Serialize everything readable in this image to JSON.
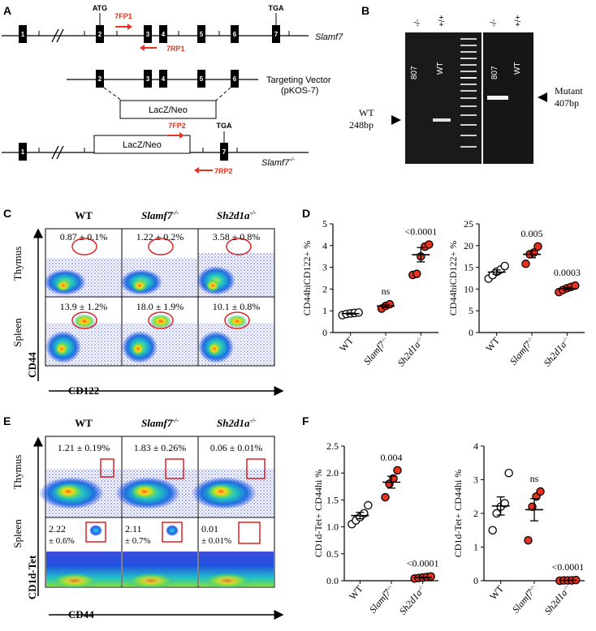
{
  "panels": {
    "A": "A",
    "B": "B",
    "C": "C",
    "D": "D",
    "E": "E",
    "F": "F"
  },
  "panelA": {
    "atg": "ATG",
    "tga_top": "TGA",
    "tga_bottom": "TGA",
    "gene_slamf7": "Slamf7",
    "gene_ko": "Slamf7",
    "gene_ko_sup": "-/-",
    "vector_line1": "Targeting Vector",
    "vector_line2": "(pKOS-7)",
    "cassette1": "LacZ/Neo",
    "cassette2": "LacZ/Neo",
    "primer_7fp1": "7FP1",
    "primer_7rp1": "7RP1",
    "primer_7fp2": "7FP2",
    "primer_7rp2": "7RP2",
    "exons_top": [
      "1",
      "2",
      "3",
      "4",
      "5",
      "6",
      "7"
    ],
    "exons_vector": [
      "2",
      "3",
      "4",
      "5",
      "6"
    ],
    "exons_ko": [
      "1",
      "7"
    ],
    "primer_color": "#e8321e"
  },
  "panelB": {
    "lane_ko1": "-/-",
    "lane_wt1": "+/+",
    "lane_ko2": "-/-",
    "lane_wt2": "+/+",
    "id1": "807",
    "wt1": "WT",
    "id2": "807",
    "wt2": "WT",
    "wt_band_line1": "WT",
    "wt_band_line2": "248bp",
    "mut_band_line1": "Mutant",
    "mut_band_line2": "407bp"
  },
  "panelC": {
    "col_wt": "WT",
    "col_slamf7": "Slamf7",
    "col_slamf7_sup": "-/-",
    "col_sh2d1a": "Sh2d1a",
    "col_sh2d1a_sup": "-/-",
    "row_thymus": "Thymus",
    "row_spleen": "Spleen",
    "yaxis": "CD44",
    "xaxis": "CD122",
    "values": [
      "0.87 ± 0.1%",
      "1.22 ± 0.2%",
      "3.58 ± 0.8%",
      "13.9 ± 1.2%",
      "18.0 ± 1.9%",
      "10.1 ± 0.8%"
    ]
  },
  "panelE": {
    "col_wt": "WT",
    "col_slamf7": "Slamf7",
    "col_slamf7_sup": "-/-",
    "col_sh2d1a": "Sh2d1a",
    "col_sh2d1a_sup": "-/-",
    "row_thymus": "Thymus",
    "row_spleen": "Spleen",
    "yaxis": "CD1d-Tet",
    "xaxis": "CD44",
    "thymus_values": [
      "1.21 ± 0.19%",
      "1.83 ± 0.26%",
      "0.06 ± 0.01%"
    ],
    "spleen_main": [
      "2.22",
      "2.11",
      "0.01"
    ],
    "spleen_sd": [
      "± 0.6%",
      "± 0.7%",
      "± 0.01%"
    ]
  },
  "chart_data": [
    {
      "type": "scatter",
      "panel": "D",
      "title": "Thymus",
      "ylabel": "CD44hiCD122+ %",
      "ylim": [
        0,
        5
      ],
      "yticks": [
        0,
        1,
        2,
        3,
        4,
        5
      ],
      "categories": [
        "WT",
        "Slamf7-/-",
        "Sh2d1a-/-"
      ],
      "groups": [
        {
          "category": "WT",
          "points": [
            0.8,
            0.85,
            0.88,
            0.9,
            0.92
          ],
          "mean": 0.87,
          "sem": 0.03,
          "fill": "#ffffff",
          "annotation": ""
        },
        {
          "category": "Slamf7-/-",
          "points": [
            1.1,
            1.22,
            1.3
          ],
          "mean": 1.22,
          "sem": 0.07,
          "fill": "#e8321e",
          "annotation": "ns"
        },
        {
          "category": "Sh2d1a-/-",
          "points": [
            2.65,
            2.7,
            3.5,
            3.95,
            4.05
          ],
          "mean": 3.58,
          "sem": 0.33,
          "fill": "#e8321e",
          "annotation": "<0.0001"
        }
      ]
    },
    {
      "type": "scatter",
      "panel": "D",
      "title": "Spleen",
      "ylabel": "CD44hiCD122+ %",
      "ylim": [
        0,
        25
      ],
      "yticks": [
        0,
        5,
        10,
        15,
        20,
        25
      ],
      "categories": [
        "WT",
        "Slamf7-/-",
        "Sh2d1a-/-"
      ],
      "groups": [
        {
          "category": "WT",
          "points": [
            12.4,
            13.2,
            14.0,
            14.5,
            15.3
          ],
          "mean": 13.9,
          "sem": 0.5,
          "fill": "#ffffff",
          "annotation": ""
        },
        {
          "category": "Slamf7-/-",
          "points": [
            15.8,
            18.0,
            18.4,
            19.8
          ],
          "mean": 18.0,
          "sem": 0.8,
          "fill": "#e8321e",
          "annotation": "0.005"
        },
        {
          "category": "Sh2d1a-/-",
          "points": [
            9.3,
            9.8,
            10.2,
            10.5,
            10.8
          ],
          "mean": 10.1,
          "sem": 0.3,
          "fill": "#e8321e",
          "annotation": "0.0003"
        }
      ]
    },
    {
      "type": "scatter",
      "panel": "F",
      "title": "Thymus",
      "ylabel": "CD1d-Tet+ CD44hi %",
      "ylim": [
        0,
        2.5
      ],
      "yticks": [
        0.0,
        0.5,
        1.0,
        1.5,
        2.0,
        2.5
      ],
      "categories": [
        "WT",
        "Slamf7-/-",
        "Sh2d1a-/-"
      ],
      "groups": [
        {
          "category": "WT",
          "points": [
            1.05,
            1.12,
            1.18,
            1.25,
            1.4
          ],
          "mean": 1.21,
          "sem": 0.06,
          "fill": "#ffffff",
          "annotation": ""
        },
        {
          "category": "Slamf7-/-",
          "points": [
            1.55,
            1.8,
            1.9,
            2.05
          ],
          "mean": 1.83,
          "sem": 0.11,
          "fill": "#e8321e",
          "annotation": "0.004"
        },
        {
          "category": "Sh2d1a-/-",
          "points": [
            0.04,
            0.05,
            0.06,
            0.07,
            0.08
          ],
          "mean": 0.06,
          "sem": 0.01,
          "fill": "#e8321e",
          "annotation": "<0.0001"
        }
      ]
    },
    {
      "type": "scatter",
      "panel": "F",
      "title": "Spleen",
      "ylabel": "CD1d-Tet+ CD44hi %",
      "ylim": [
        0,
        4
      ],
      "yticks": [
        0,
        1,
        2,
        3,
        4
      ],
      "categories": [
        "WT",
        "Slamf7-/-",
        "Sh2d1a-/-"
      ],
      "groups": [
        {
          "category": "WT",
          "points": [
            1.5,
            2.0,
            2.2,
            2.3,
            3.2
          ],
          "mean": 2.22,
          "sem": 0.27,
          "fill": "#ffffff",
          "annotation": ""
        },
        {
          "category": "Slamf7-/-",
          "points": [
            1.2,
            2.2,
            2.5,
            2.65
          ],
          "mean": 2.11,
          "sem": 0.33,
          "fill": "#e8321e",
          "annotation": "ns"
        },
        {
          "category": "Sh2d1a-/-",
          "points": [
            0.0,
            0.01,
            0.01,
            0.01,
            0.02
          ],
          "mean": 0.01,
          "sem": 0.004,
          "fill": "#e8321e",
          "annotation": "<0.0001"
        }
      ]
    }
  ]
}
